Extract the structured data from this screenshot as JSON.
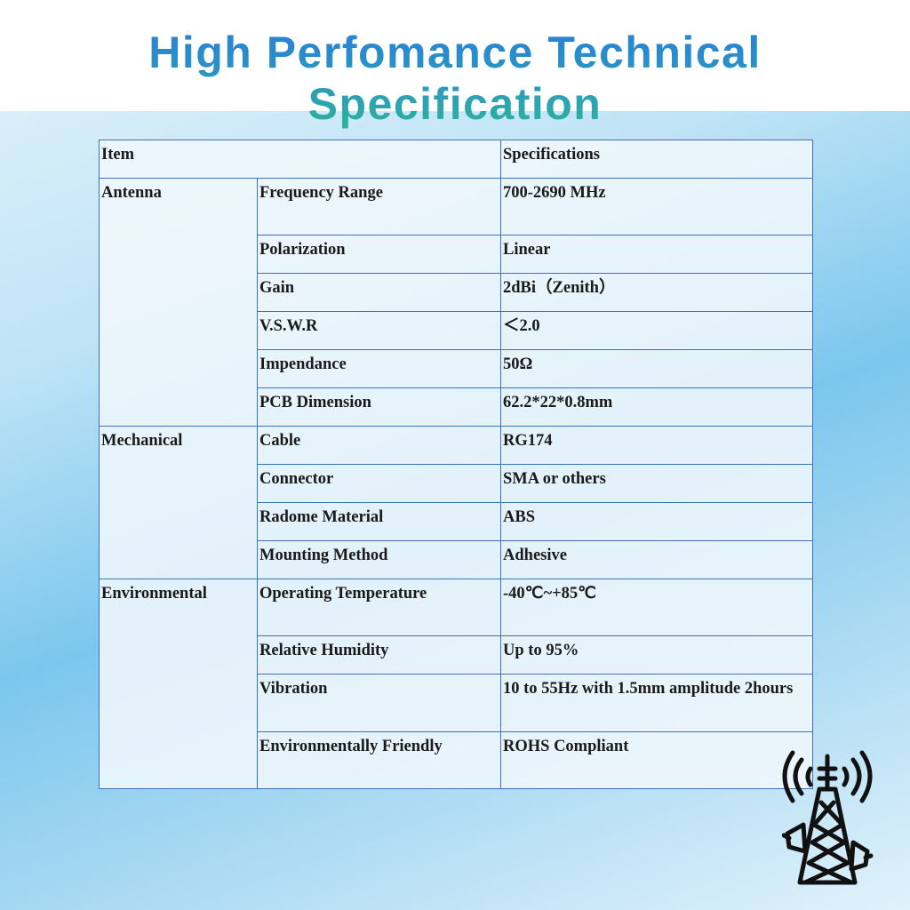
{
  "header": {
    "title": "High Perfomance Technical Specification"
  },
  "table": {
    "columns": [
      "Item",
      "Specifications"
    ],
    "groups": [
      {
        "name": "Antenna",
        "rows": [
          [
            "Frequency Range",
            "700-2690 MHz"
          ],
          [
            "Polarization",
            "Linear"
          ],
          [
            "Gain",
            "2dBi（Zenith）"
          ],
          [
            "V.S.W.R",
            "＜2.0"
          ],
          [
            "Impendance",
            "50Ω"
          ],
          [
            "PCB Dimension",
            "62.2*22*0.8mm"
          ]
        ]
      },
      {
        "name": "Mechanical",
        "rows": [
          [
            "Cable",
            "RG174"
          ],
          [
            "Connector",
            "SMA or others"
          ],
          [
            "Radome Material",
            "ABS"
          ],
          [
            "Mounting Method",
            "Adhesive"
          ]
        ]
      },
      {
        "name": "Environmental",
        "rows": [
          [
            "Operating Temperature",
            "-40℃~+85℃"
          ],
          [
            "Relative Humidity",
            "Up to 95%"
          ],
          [
            "Vibration",
            "10 to 55Hz with 1.5mm amplitude 2hours"
          ],
          [
            "Environmentally Friendly",
            "ROHS Compliant"
          ]
        ]
      }
    ]
  }
}
